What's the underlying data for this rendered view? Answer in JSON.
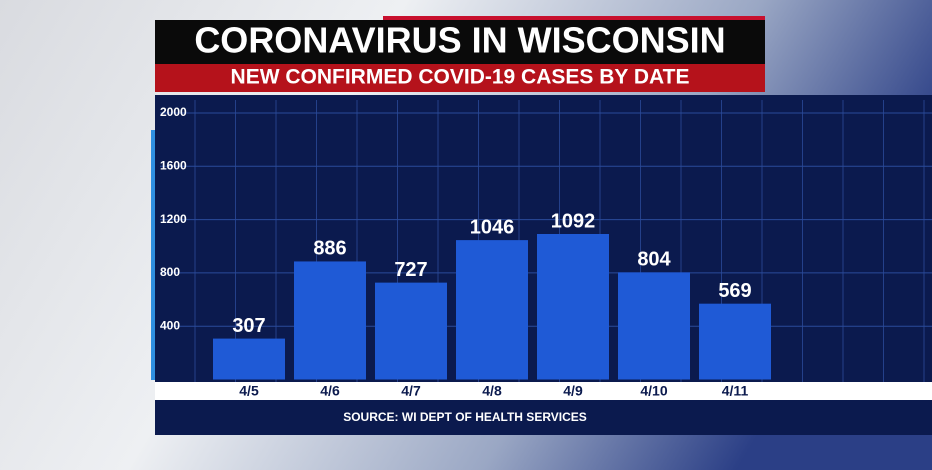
{
  "chart_data": {
    "type": "bar",
    "title": "CORONAVIRUS IN WISCONSIN",
    "subtitle": "NEW CONFIRMED COVID-19 CASES BY DATE",
    "source": "SOURCE: WI DEPT OF HEALTH SERVICES",
    "categories": [
      "4/5",
      "4/6",
      "4/7",
      "4/8",
      "4/9",
      "4/10",
      "4/11"
    ],
    "values": [
      307,
      886,
      727,
      1046,
      1092,
      804,
      569
    ],
    "color": "#1f5ad6",
    "ylim": [
      0,
      2000
    ],
    "yticks": [
      400,
      800,
      1200,
      1600,
      2000
    ],
    "grid": true
  }
}
